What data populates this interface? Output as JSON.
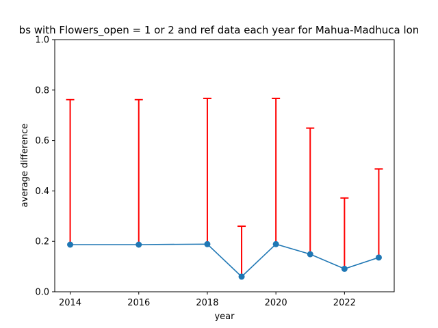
{
  "chart_data": {
    "type": "line",
    "title": "bs with Flowers_open = 1 or 2 and ref data each year for Mahua-Madhuca lon",
    "xlabel": "year",
    "ylabel": "average difference",
    "xlim": [
      2013.55,
      2023.45
    ],
    "ylim": [
      0,
      1.0
    ],
    "x_ticks": [
      2014,
      2016,
      2018,
      2020,
      2022
    ],
    "y_ticks": [
      0.0,
      0.2,
      0.4,
      0.6,
      0.8,
      1.0
    ],
    "x_tick_labels": [
      "2014",
      "2016",
      "2018",
      "2020",
      "2022"
    ],
    "y_tick_labels": [
      "0.0",
      "0.2",
      "0.4",
      "0.6",
      "0.8",
      "1.0"
    ],
    "grid": false,
    "series": [
      {
        "x": [
          2014,
          2016,
          2018,
          2019,
          2020,
          2021,
          2022,
          2023
        ],
        "values": [
          0.187,
          0.187,
          0.189,
          0.06,
          0.189,
          0.149,
          0.091,
          0.136
        ],
        "error_low": [
          0,
          0,
          0,
          0,
          0,
          0,
          0,
          0
        ],
        "error_high": [
          0.575,
          0.575,
          0.578,
          0.2,
          0.578,
          0.5,
          0.281,
          0.351
        ]
      }
    ],
    "colors": {
      "line": "#1f77b4",
      "error_bars": "#ff0000",
      "axes": "#000000"
    }
  }
}
